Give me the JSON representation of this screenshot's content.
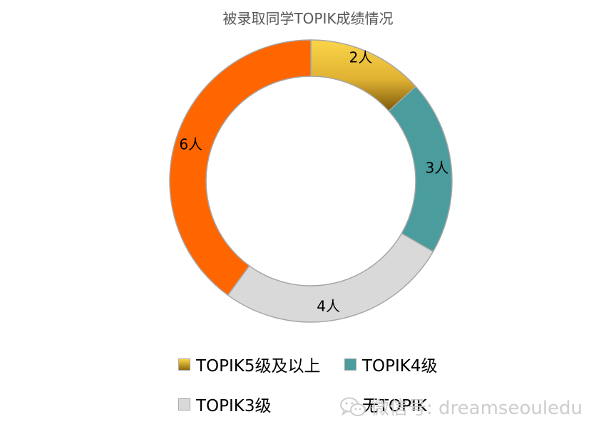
{
  "chart_data": {
    "type": "donut",
    "title": "被录取同学TOPIK成绩情况",
    "slices": [
      {
        "name": "TOPIK5级及以上",
        "value": 2,
        "label": "2人",
        "color": "#e8b838"
      },
      {
        "name": "TOPIK4级",
        "value": 3,
        "label": "3人",
        "color": "#4a9c9d"
      },
      {
        "name": "TOPIK3级",
        "value": 4,
        "label": "4人",
        "color": "#d9d9d9"
      },
      {
        "name": "无TOPIK",
        "value": 6,
        "label": "6人",
        "color": "#ff6600"
      }
    ],
    "legend_placement": "bottom"
  },
  "legend": {
    "item1": "TOPIK5级及以上",
    "item2": "TOPIK4级",
    "item3": "TOPIK3级",
    "item4": "无TOPIK"
  },
  "watermark": {
    "text": "微信号: dreamseouledu",
    "icon": "wechat-icon"
  }
}
